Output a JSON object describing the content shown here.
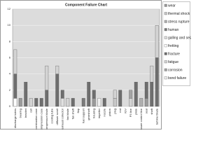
{
  "chart_data": {
    "type": "bar",
    "stacked": true,
    "title": "Component Failure Chart",
    "categories": [
      "air discharge tubes",
      "bearing",
      "bracket",
      "cell",
      "combustion case",
      "compression case",
      "compressor blade",
      "cooling tube",
      "diffuser scroll",
      "exhaust collector",
      "fan blade",
      "fan shaft",
      "flap",
      "fuel support",
      "gearshaft",
      "housing",
      "impeller",
      "nozzle",
      "piston",
      "plug",
      "rod",
      "IGV",
      "P3 line",
      "plate",
      "pressure control line",
      "seal",
      "shaft",
      "turbine blade"
    ],
    "series": [
      {
        "name": "wear",
        "color": "#9a9a9a",
        "values": [
          0,
          1,
          0,
          0,
          0,
          0,
          0,
          0,
          0,
          0,
          0,
          0,
          0,
          0,
          0,
          1,
          0,
          0,
          0,
          0,
          0,
          0,
          0,
          0,
          0,
          1,
          0,
          0
        ]
      },
      {
        "name": "thermal shock",
        "color": "#c8c8c8",
        "values": [
          0,
          0,
          0,
          0,
          0,
          0,
          0,
          0,
          0,
          0,
          0,
          0,
          0,
          0,
          0,
          0,
          0,
          0,
          0,
          1,
          0,
          0,
          0,
          0,
          0,
          0,
          0,
          0
        ]
      },
      {
        "name": "stress rupture",
        "color": "#b0b0b0",
        "values": [
          0,
          0,
          0,
          0,
          0,
          0,
          0,
          0,
          0,
          0,
          0,
          0,
          0,
          0,
          0,
          0,
          0,
          0,
          0,
          0,
          0,
          0,
          0,
          0,
          1,
          0,
          0,
          0
        ]
      },
      {
        "name": "human",
        "color": "#7a7a7a",
        "values": [
          0,
          0,
          0,
          0,
          0,
          0,
          0,
          0,
          0,
          0,
          0,
          0,
          0,
          1,
          0,
          0,
          0,
          0,
          0,
          0,
          0,
          0,
          0,
          0,
          0,
          0,
          0,
          0
        ]
      },
      {
        "name": "galling and seizure",
        "color": "#e0e0e0",
        "values": [
          0,
          0,
          0,
          0,
          0,
          0,
          0,
          0,
          0,
          1,
          0,
          0,
          0,
          0,
          0,
          0,
          0,
          0,
          0,
          0,
          0,
          0,
          0,
          0,
          0,
          0,
          0,
          0
        ]
      },
      {
        "name": "fretting",
        "color": "#ffffff",
        "values": [
          1,
          0,
          0,
          0,
          0,
          0,
          0,
          0,
          0,
          0,
          0,
          0,
          0,
          0,
          0,
          0,
          0,
          0,
          0,
          0,
          0,
          0,
          0,
          0,
          0,
          0,
          0,
          0
        ]
      },
      {
        "name": "fracture",
        "color": "#6e6e6e",
        "values": [
          3,
          0,
          3,
          0,
          1,
          1,
          2,
          0,
          4,
          1,
          0,
          1,
          0,
          0,
          3,
          1,
          0,
          1,
          0,
          0,
          2,
          0,
          0,
          3,
          0,
          2,
          3,
          6
        ]
      },
      {
        "name": "fatigue",
        "color": "#d4d4d4",
        "values": [
          3,
          0,
          0,
          1,
          0,
          0,
          3,
          0,
          1,
          0,
          1,
          0,
          0,
          0,
          0,
          0,
          0,
          0,
          0,
          1,
          0,
          0,
          1,
          0,
          0,
          0,
          2,
          4
        ]
      },
      {
        "name": "corrosion",
        "color": "#a4a4a4",
        "values": [
          0,
          0,
          0,
          0,
          0,
          0,
          0,
          0,
          0,
          0,
          0,
          0,
          0,
          0,
          0,
          0,
          0,
          0,
          0,
          0,
          0,
          0,
          1,
          0,
          0,
          0,
          0,
          0
        ]
      },
      {
        "name": "bond failure",
        "color": "#f0f0f0",
        "values": [
          0,
          0,
          0,
          0,
          0,
          0,
          0,
          0,
          0,
          0,
          0,
          0,
          0,
          0,
          0,
          0,
          1,
          0,
          0,
          0,
          0,
          0,
          0,
          0,
          0,
          0,
          0,
          0
        ]
      }
    ],
    "ylim": [
      0,
      12
    ],
    "yticks": [
      0,
      2,
      4,
      6,
      8,
      10,
      12
    ],
    "grid": true
  }
}
